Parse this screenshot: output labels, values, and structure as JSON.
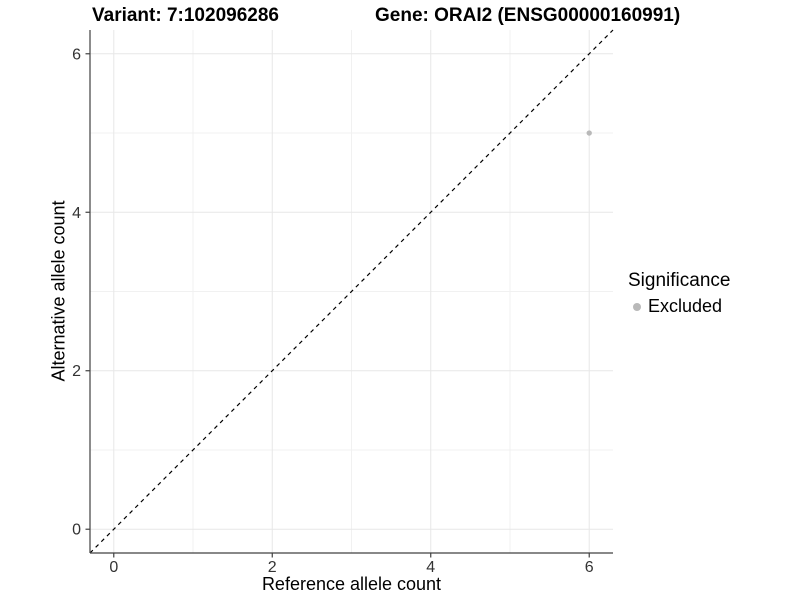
{
  "titles": {
    "variant": "Variant: 7:102096286",
    "gene": "Gene: ORAI2 (ENSG00000160991)"
  },
  "chart_data": {
    "type": "scatter",
    "title_left": "Variant: 7:102096286",
    "title_right": "Gene: ORAI2 (ENSG00000160991)",
    "xlabel": "Reference allele count",
    "ylabel": "Alternative allele count",
    "xlim": [
      -0.3,
      6.3
    ],
    "ylim": [
      -0.3,
      6.3
    ],
    "x_major_ticks": [
      0,
      2,
      4,
      6
    ],
    "y_major_ticks": [
      0,
      2,
      4,
      6
    ],
    "x_minor_ticks": [
      1,
      3,
      5
    ],
    "y_minor_ticks": [
      1,
      3,
      5
    ],
    "grid": true,
    "points": [
      {
        "x": 6,
        "y": 5,
        "series": "Excluded"
      }
    ],
    "reference_line": {
      "type": "identity",
      "from": [
        -0.3,
        -0.3
      ],
      "to": [
        6.3,
        6.3
      ],
      "style": "dashed"
    },
    "legend": {
      "title": "Significance",
      "position": "right",
      "entries": [
        {
          "label": "Excluded",
          "color": "#b9b9b9"
        }
      ]
    }
  },
  "colors": {
    "background": "#ffffff",
    "point": "#b9b9b9",
    "grid_major": "#e7e7e7",
    "grid_minor": "#f1f1f1",
    "axis_line": "#404040",
    "tick_label": "#333333",
    "reference_line": "#000000",
    "text": "#000000"
  }
}
